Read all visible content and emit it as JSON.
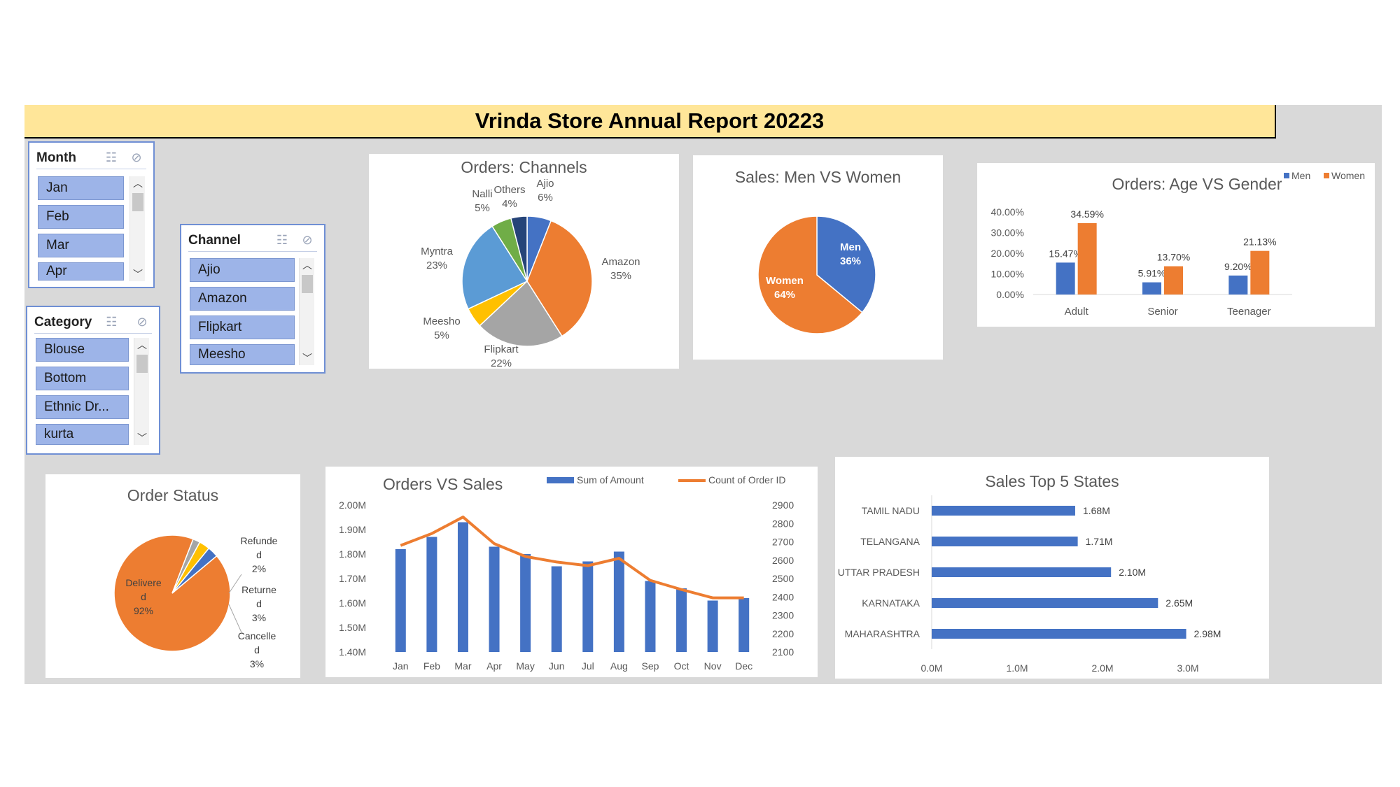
{
  "report": {
    "title": "Vrinda Store Annual Report 20223"
  },
  "slicers": {
    "month": {
      "title": "Month",
      "items": [
        "Jan",
        "Feb",
        "Mar",
        "Apr"
      ]
    },
    "channel": {
      "title": "Channel",
      "items": [
        "Ajio",
        "Amazon",
        "Flipkart",
        "Meesho"
      ]
    },
    "category": {
      "title": "Category",
      "items": [
        "Blouse",
        "Bottom",
        "Ethnic Dr...",
        "kurta"
      ]
    }
  },
  "chart_data": [
    {
      "id": "orders_channels",
      "type": "pie",
      "title": "Orders: Channels",
      "slices": [
        {
          "label": "Ajio",
          "value": 6,
          "pct_label": "6%",
          "color": "#4472c4"
        },
        {
          "label": "Amazon",
          "value": 35,
          "pct_label": "35%",
          "color": "#ed7d31"
        },
        {
          "label": "Flipkart",
          "value": 22,
          "pct_label": "22%",
          "color": "#a5a5a5"
        },
        {
          "label": "Meesho",
          "value": 5,
          "pct_label": "5%",
          "color": "#ffc000"
        },
        {
          "label": "Myntra",
          "value": 23,
          "pct_label": "23%",
          "color": "#5b9bd5"
        },
        {
          "label": "Nalli",
          "value": 5,
          "pct_label": "5%",
          "color": "#70ad47"
        },
        {
          "label": "Others",
          "value": 4,
          "pct_label": "4%",
          "color": "#264478"
        }
      ]
    },
    {
      "id": "sales_men_women",
      "type": "pie",
      "title": "Sales: Men VS Women",
      "slices": [
        {
          "label": "Men",
          "value": 36,
          "pct_label": "36%",
          "color": "#4472c4"
        },
        {
          "label": "Women",
          "value": 64,
          "pct_label": "64%",
          "color": "#ed7d31"
        }
      ]
    },
    {
      "id": "orders_age_gender",
      "type": "bar",
      "title": "Orders: Age VS Gender",
      "categories": [
        "Adult",
        "Senior",
        "Teenager"
      ],
      "series": [
        {
          "name": "Men",
          "values": [
            15.47,
            5.91,
            9.2
          ],
          "labels": [
            "15.47%",
            "5.91%",
            "9.20%"
          ],
          "color": "#4472c4"
        },
        {
          "name": "Women",
          "values": [
            34.59,
            13.7,
            21.13
          ],
          "labels": [
            "34.59%",
            "13.70%",
            "21.13%"
          ],
          "color": "#ed7d31"
        }
      ],
      "ylim": [
        0,
        40
      ],
      "yticks": [
        "0.00%",
        "10.00%",
        "20.00%",
        "30.00%",
        "40.00%"
      ],
      "legend": "top-right"
    },
    {
      "id": "order_status",
      "type": "pie",
      "title": "Order Status",
      "slices": [
        {
          "label": "Delivered",
          "value": 92,
          "pct_label": "92%",
          "color": "#ed7d31"
        },
        {
          "label": "Refunded",
          "value": 2,
          "pct_label": "2%",
          "color": "#a5a5a5"
        },
        {
          "label": "Returned",
          "value": 3,
          "pct_label": "3%",
          "color": "#ffc000"
        },
        {
          "label": "Cancelled",
          "value": 3,
          "pct_label": "3%",
          "color": "#4472c4"
        }
      ]
    },
    {
      "id": "orders_vs_sales",
      "type": "bar",
      "title": "Orders VS Sales",
      "categories": [
        "Jan",
        "Feb",
        "Mar",
        "Apr",
        "May",
        "Jun",
        "Jul",
        "Aug",
        "Sep",
        "Oct",
        "Nov",
        "Dec"
      ],
      "series": [
        {
          "name": "Sum of Amount",
          "kind": "bar",
          "axis": "left",
          "values": [
            1.82,
            1.87,
            1.93,
            1.83,
            1.8,
            1.75,
            1.77,
            1.81,
            1.69,
            1.66,
            1.61,
            1.62
          ],
          "color": "#4472c4"
        },
        {
          "name": "Count of Order ID",
          "kind": "line",
          "axis": "right",
          "values": [
            2680,
            2745,
            2835,
            2690,
            2620,
            2590,
            2570,
            2610,
            2490,
            2440,
            2395,
            2395
          ],
          "color": "#ed7d31"
        }
      ],
      "ylim_left": [
        1.4,
        2.0
      ],
      "yticks_left": [
        "1.40M",
        "1.50M",
        "1.60M",
        "1.70M",
        "1.80M",
        "1.90M",
        "2.00M"
      ],
      "ylim_right": [
        2100,
        2900
      ],
      "yticks_right": [
        "2100",
        "2200",
        "2300",
        "2400",
        "2500",
        "2600",
        "2700",
        "2800",
        "2900"
      ],
      "legend": "top"
    },
    {
      "id": "sales_top5_states",
      "type": "bar",
      "orientation": "horizontal",
      "title": "Sales Top 5 States",
      "categories": [
        "TAMIL NADU",
        "TELANGANA",
        "UTTAR PRADESH",
        "KARNATAKA",
        "MAHARASHTRA"
      ],
      "values": [
        1.68,
        1.71,
        2.1,
        2.65,
        2.98
      ],
      "labels": [
        "1.68M",
        "1.71M",
        "2.10M",
        "2.65M",
        "2.98M"
      ],
      "xlim": [
        0,
        3
      ],
      "xticks": [
        "0.0M",
        "1.0M",
        "2.0M",
        "3.0M"
      ],
      "color": "#4472c4"
    }
  ]
}
